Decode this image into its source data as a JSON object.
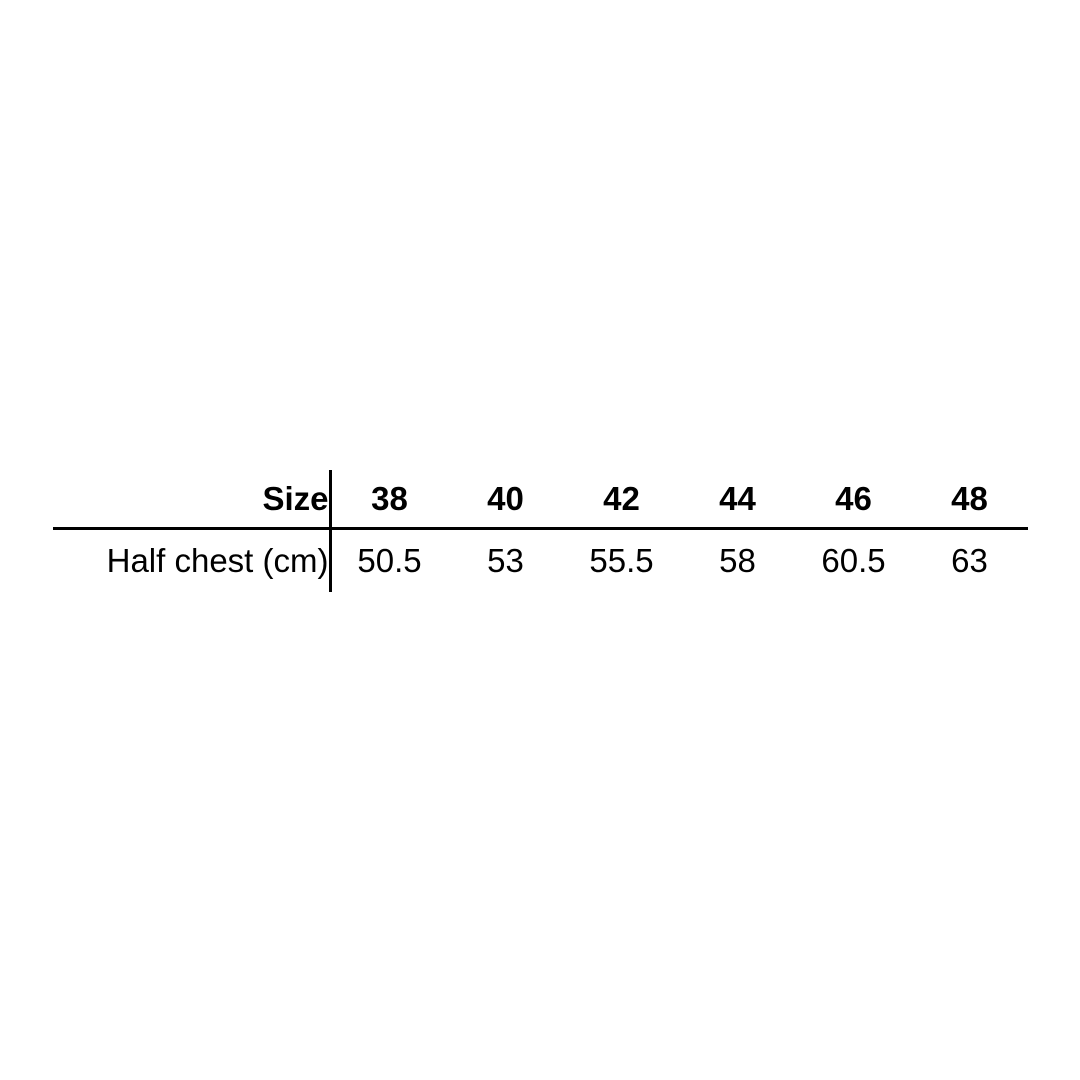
{
  "colors": {
    "background": "#ffffff",
    "text": "#000000",
    "rule": "#000000"
  },
  "table": {
    "header": {
      "label": "Size",
      "columns": [
        "38",
        "40",
        "42",
        "44",
        "46",
        "48"
      ]
    },
    "rows": [
      {
        "label": "Half chest (cm)",
        "values": [
          "50.5",
          "53",
          "55.5",
          "58",
          "60.5",
          "63"
        ]
      }
    ]
  },
  "chart_data": {
    "type": "table",
    "title": "",
    "columns": [
      "Size",
      "38",
      "40",
      "42",
      "44",
      "46",
      "48"
    ],
    "rows": [
      [
        "Half chest (cm)",
        "50.5",
        "53",
        "55.5",
        "58",
        "60.5",
        "63"
      ]
    ],
    "units": "cm",
    "layout": {
      "label_column_alignment": "right",
      "data_column_alignment": "center",
      "header_bold": true,
      "vertical_rule_after_label_column": true,
      "horizontal_rule_below_header": true
    }
  }
}
